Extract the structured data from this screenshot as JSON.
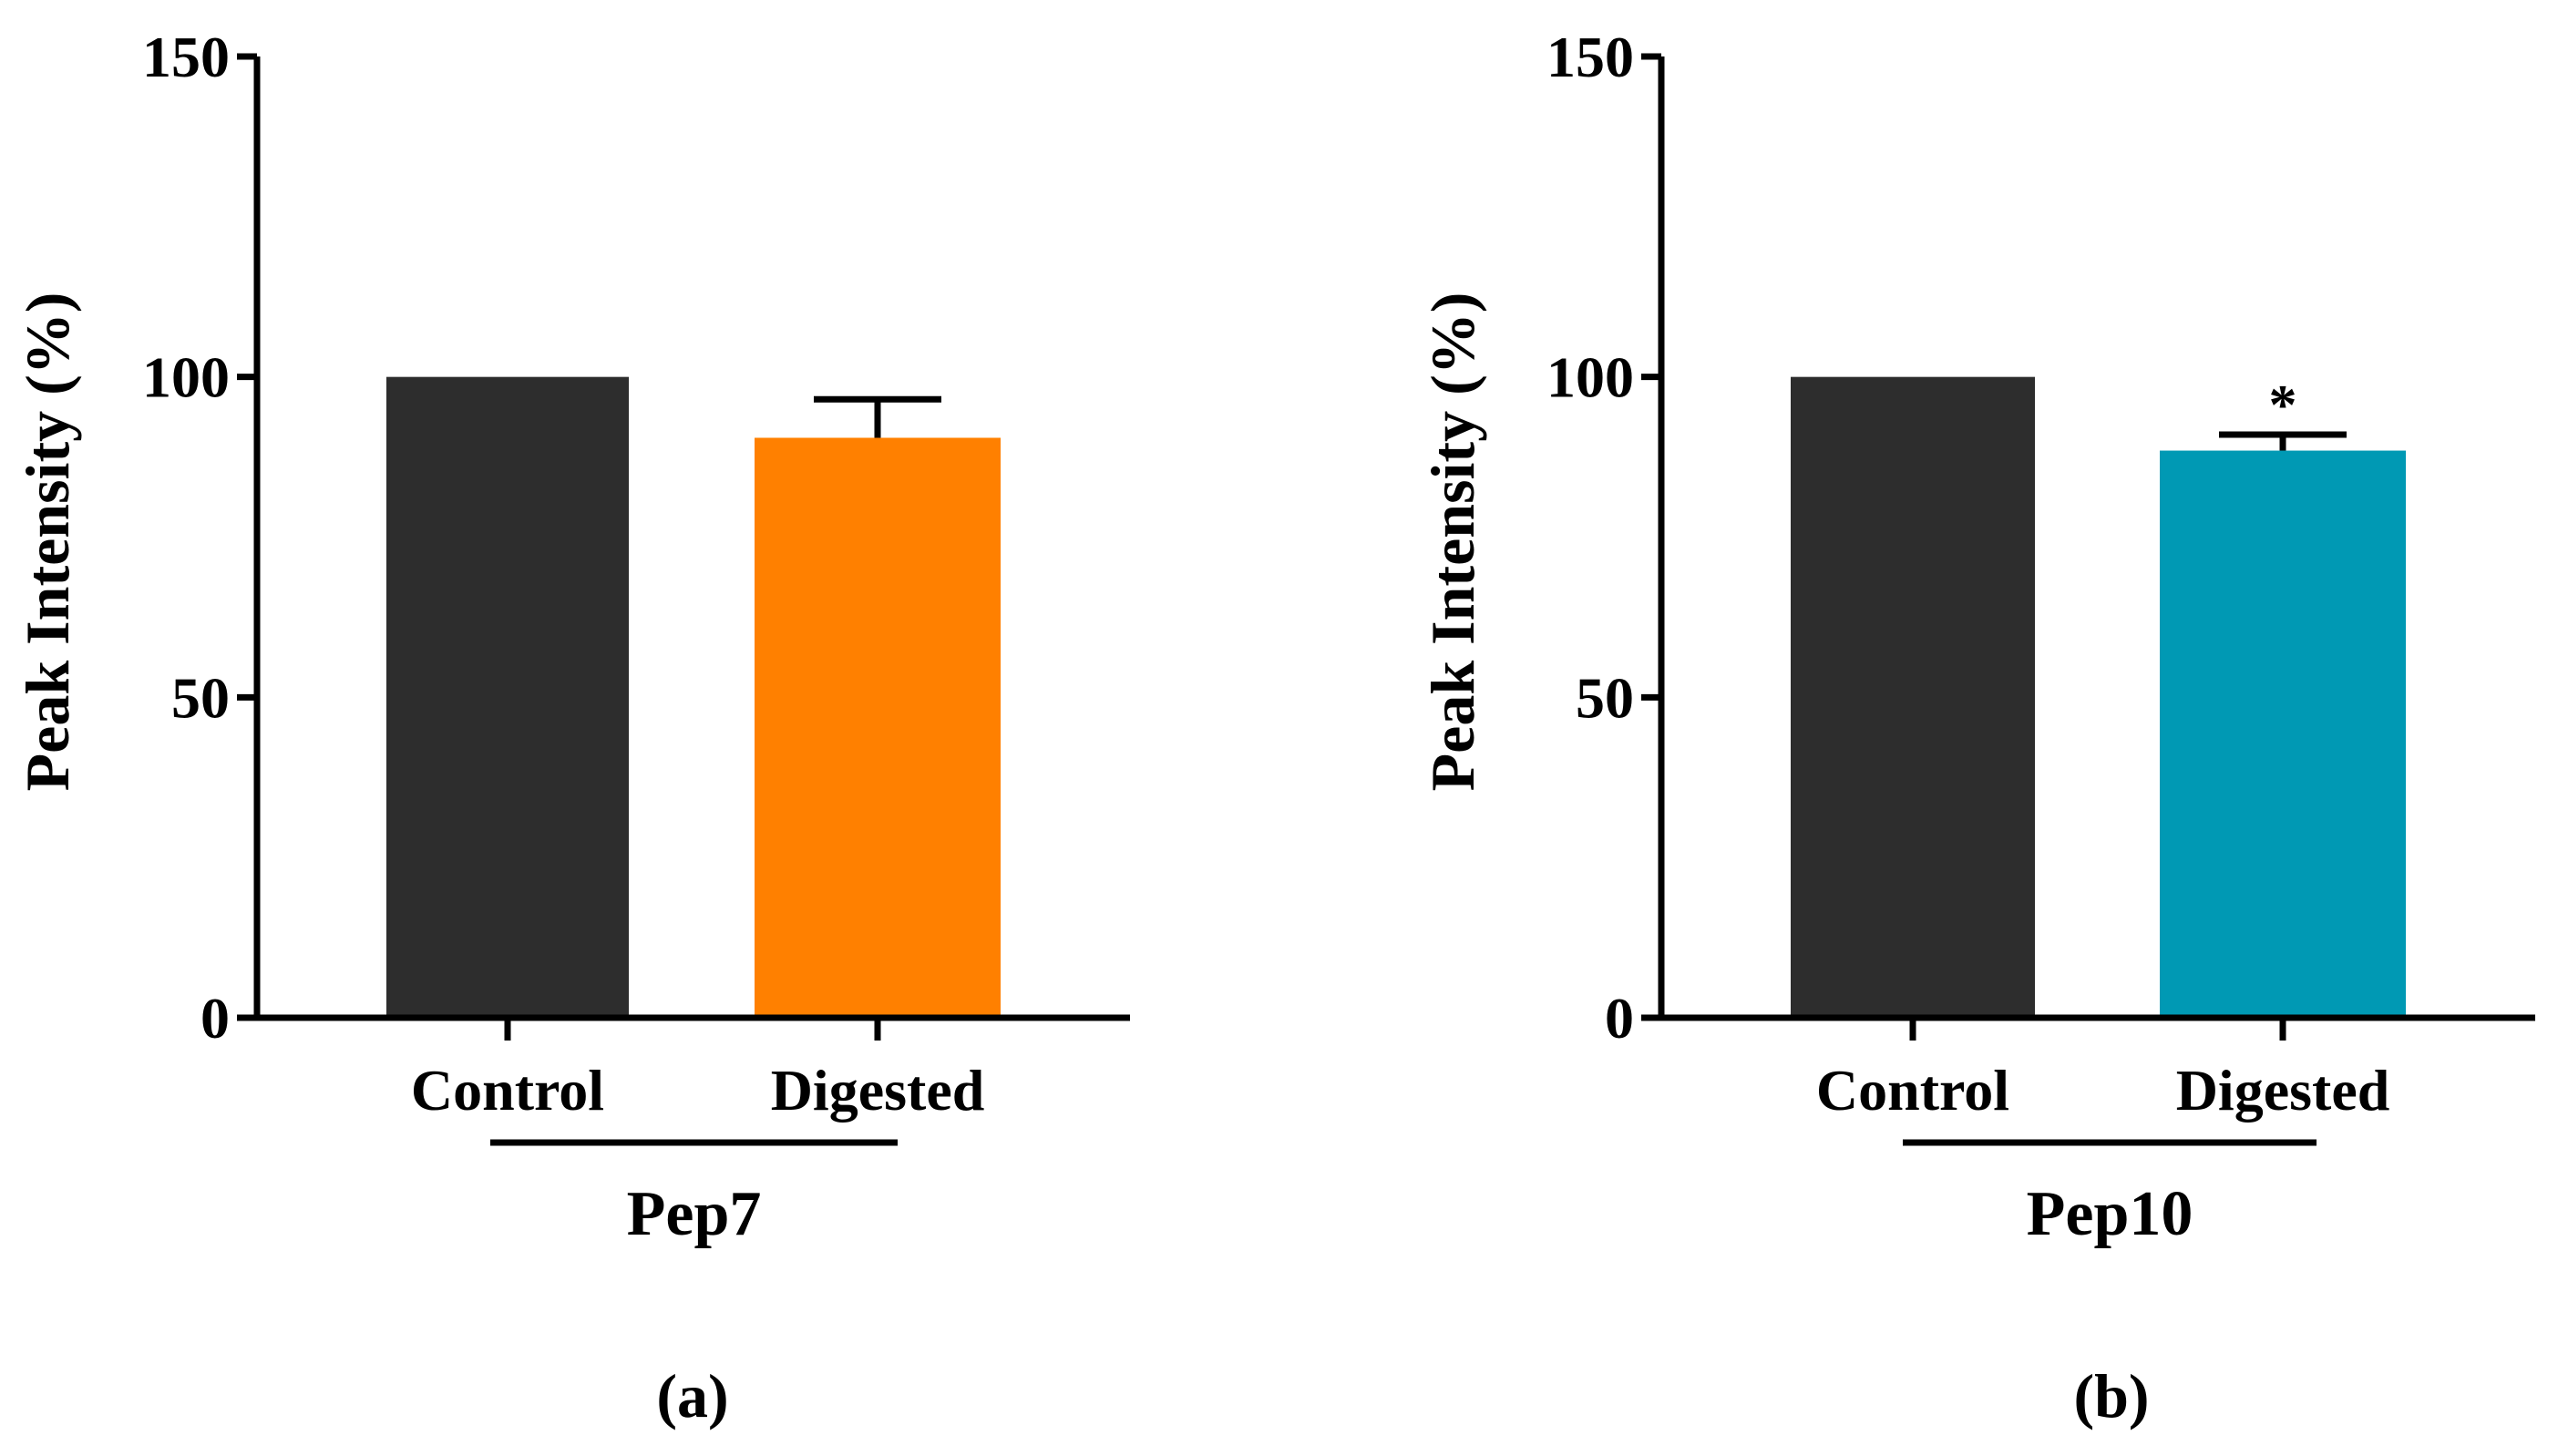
{
  "chart_data": [
    {
      "type": "bar",
      "panel_label": "(a)",
      "group_label": "Pep7",
      "categories": [
        "Control",
        "Digested"
      ],
      "values": [
        100,
        90.5
      ],
      "error": [
        0,
        6
      ],
      "colors": [
        "#2d2d2d",
        "#ff8000"
      ],
      "annotations": [
        "",
        ""
      ],
      "ylabel": "Peak Intensity (%)",
      "xlabel": "",
      "ylim": [
        0,
        150
      ],
      "yticks": [
        0,
        50,
        100,
        150
      ],
      "grid": false
    },
    {
      "type": "bar",
      "panel_label": "(b)",
      "group_label": "Pep10",
      "categories": [
        "Control",
        "Digested"
      ],
      "values": [
        100,
        88.5
      ],
      "error": [
        0,
        2.5
      ],
      "colors": [
        "#2d2d2d",
        "#0099b4"
      ],
      "annotations": [
        "",
        "*"
      ],
      "ylabel": "Peak Intensity (%)",
      "xlabel": "",
      "ylim": [
        0,
        150
      ],
      "yticks": [
        0,
        50,
        100,
        150
      ],
      "grid": false
    }
  ]
}
